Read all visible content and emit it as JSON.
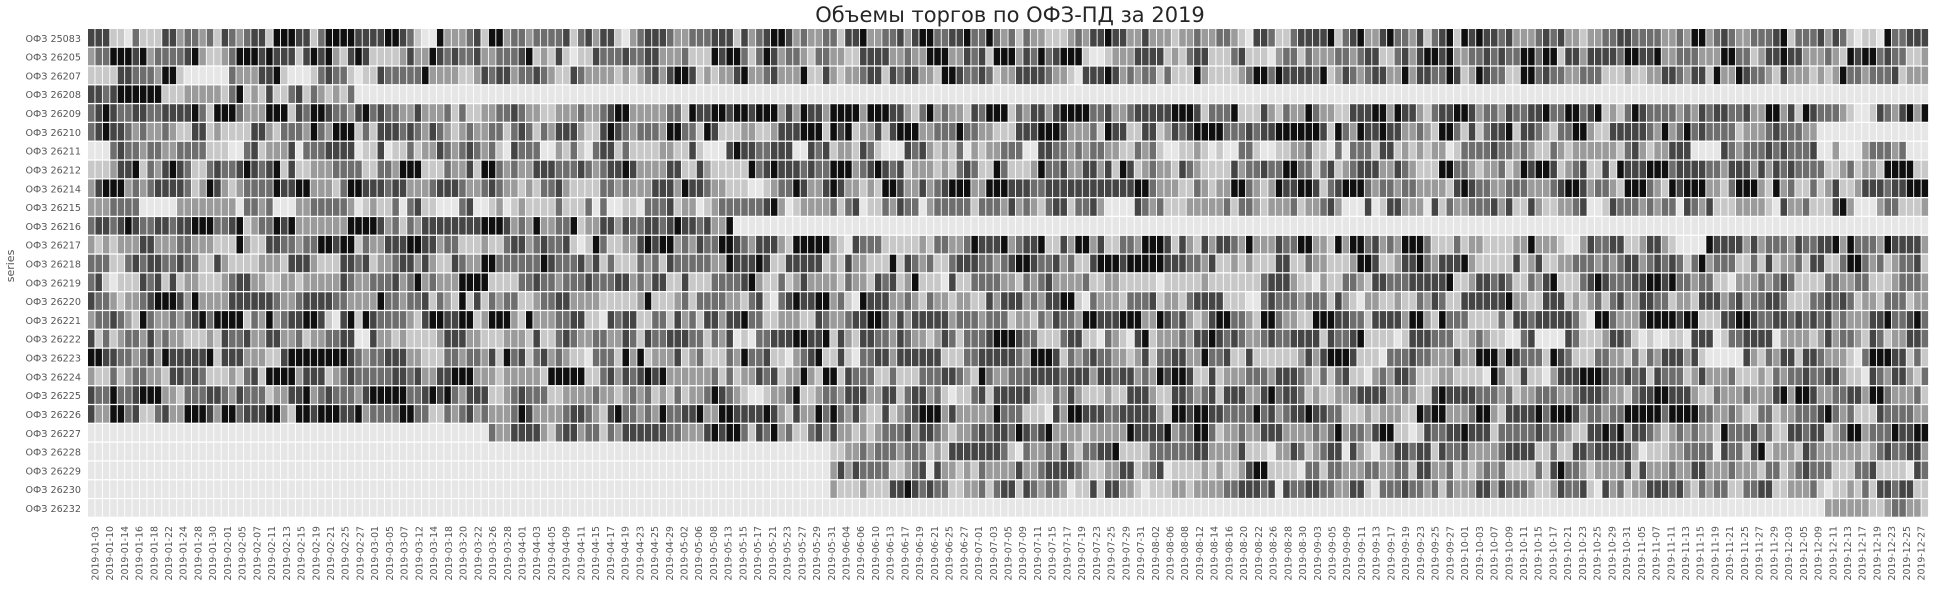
{
  "chart_data": {
    "type": "heatmap",
    "title": "Объемы торгов по ОФЗ-ПД за 2019",
    "ylabel": "series",
    "xlabel": "",
    "colormap": [
      "#e6e6e6",
      "#c8c8c8",
      "#9b9b9b",
      "#6e6e6e",
      "#454545",
      "#0f0f0f"
    ],
    "rows": [
      "ОФЗ 25083",
      "ОФЗ 26205",
      "ОФЗ 26207",
      "ОФЗ 26208",
      "ОФЗ 26209",
      "ОФЗ 26210",
      "ОФЗ 26211",
      "ОФЗ 26212",
      "ОФЗ 26214",
      "ОФЗ 26215",
      "ОФЗ 26216",
      "ОФЗ 26217",
      "ОФЗ 26218",
      "ОФЗ 26219",
      "ОФЗ 26220",
      "ОФЗ 26221",
      "ОФЗ 26222",
      "ОФЗ 26223",
      "ОФЗ 26224",
      "ОФЗ 26225",
      "ОФЗ 26226",
      "ОФЗ 26227",
      "ОФЗ 26228",
      "ОФЗ 26229",
      "ОФЗ 26230",
      "ОФЗ 26232"
    ],
    "x_tick_labels": [
      "2019-01-03",
      "2019-01-10",
      "2019-01-14",
      "2019-01-16",
      "2019-01-18",
      "2019-01-22",
      "2019-01-24",
      "2019-01-28",
      "2019-01-30",
      "2019-02-01",
      "2019-02-05",
      "2019-02-07",
      "2019-02-11",
      "2019-02-13",
      "2019-02-15",
      "2019-02-19",
      "2019-02-21",
      "2019-02-25",
      "2019-02-27",
      "2019-03-01",
      "2019-03-05",
      "2019-03-07",
      "2019-03-12",
      "2019-03-14",
      "2019-03-18",
      "2019-03-20",
      "2019-03-22",
      "2019-03-26",
      "2019-03-28",
      "2019-04-01",
      "2019-04-03",
      "2019-04-05",
      "2019-04-09",
      "2019-04-11",
      "2019-04-15",
      "2019-04-17",
      "2019-04-19",
      "2019-04-23",
      "2019-04-25",
      "2019-04-29",
      "2019-05-02",
      "2019-05-06",
      "2019-05-08",
      "2019-05-13",
      "2019-05-15",
      "2019-05-17",
      "2019-05-21",
      "2019-05-23",
      "2019-05-27",
      "2019-05-29",
      "2019-05-31",
      "2019-06-04",
      "2019-06-06",
      "2019-06-10",
      "2019-06-13",
      "2019-06-17",
      "2019-06-19",
      "2019-06-21",
      "2019-06-25",
      "2019-06-27",
      "2019-07-01",
      "2019-07-03",
      "2019-07-05",
      "2019-07-09",
      "2019-07-11",
      "2019-07-15",
      "2019-07-17",
      "2019-07-19",
      "2019-07-23",
      "2019-07-25",
      "2019-07-29",
      "2019-07-31",
      "2019-08-02",
      "2019-08-06",
      "2019-08-08",
      "2019-08-12",
      "2019-08-14",
      "2019-08-16",
      "2019-08-20",
      "2019-08-22",
      "2019-08-26",
      "2019-08-28",
      "2019-08-30",
      "2019-09-03",
      "2019-09-05",
      "2019-09-09",
      "2019-09-11",
      "2019-09-13",
      "2019-09-17",
      "2019-09-19",
      "2019-09-23",
      "2019-09-25",
      "2019-09-27",
      "2019-10-01",
      "2019-10-03",
      "2019-10-07",
      "2019-10-09",
      "2019-10-11",
      "2019-10-15",
      "2019-10-17",
      "2019-10-21",
      "2019-10-23",
      "2019-10-25",
      "2019-10-29",
      "2019-10-31",
      "2019-11-05",
      "2019-11-07",
      "2019-11-11",
      "2019-11-13",
      "2019-11-15",
      "2019-11-19",
      "2019-11-21",
      "2019-11-25",
      "2019-11-27",
      "2019-11-29",
      "2019-12-03",
      "2019-12-05",
      "2019-12-09",
      "2019-12-11",
      "2019-12-13",
      "2019-12-17",
      "2019-12-19",
      "2019-12-23",
      "2019-12-25",
      "2019-12-27"
    ],
    "n_columns": 248,
    "row_active_ranges": [
      [
        0,
        248
      ],
      [
        0,
        248
      ],
      [
        0,
        248
      ],
      [
        0,
        36
      ],
      [
        0,
        248
      ],
      [
        0,
        233
      ],
      [
        0,
        248
      ],
      [
        0,
        248
      ],
      [
        0,
        248
      ],
      [
        0,
        248
      ],
      [
        0,
        87
      ],
      [
        0,
        248
      ],
      [
        0,
        248
      ],
      [
        0,
        248
      ],
      [
        0,
        248
      ],
      [
        0,
        248
      ],
      [
        0,
        248
      ],
      [
        0,
        248
      ],
      [
        0,
        248
      ],
      [
        0,
        248
      ],
      [
        0,
        248
      ],
      [
        54,
        248
      ],
      [
        100,
        248
      ],
      [
        100,
        248
      ],
      [
        100,
        248
      ],
      [
        234,
        248
      ]
    ],
    "row_mean_levels": [
      3.0,
      3.0,
      3.0,
      2.6,
      3.2,
      3.0,
      2.0,
      2.8,
      3.2,
      2.0,
      3.4,
      3.0,
      2.6,
      2.6,
      2.6,
      2.8,
      2.4,
      2.8,
      2.8,
      2.8,
      3.2,
      3.0,
      2.4,
      2.4,
      2.4,
      2.6
    ]
  }
}
